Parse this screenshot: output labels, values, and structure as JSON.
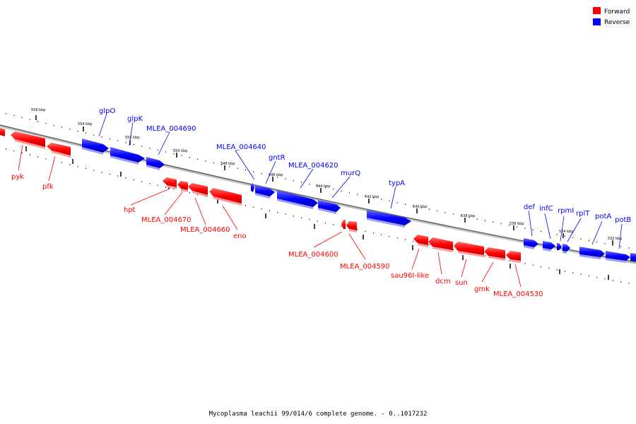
{
  "caption": "Mycoplasma leachii 99/014/6 complete genome. - 0..1017232",
  "legend": [
    {
      "label": "Forward",
      "color": "#ff0000"
    },
    {
      "label": "Reverse",
      "color": "#0000ff"
    }
  ],
  "colors": {
    "forward": "#ff0000",
    "reverse": "#0000ff",
    "backbone": "#808080"
  },
  "kbp_ticks": [
    "556 kbp",
    "554 kbp",
    "552 kbp",
    "550 kbp",
    "548 kbp",
    "546 kbp",
    "544 kbp",
    "542 kbp",
    "540 kbp",
    "538 kbp",
    "536 kbp",
    "534 kbp",
    "532 kbp"
  ],
  "forward_genes": [
    "pyk",
    "pfk",
    "hpt",
    "MLEA_004670",
    "MLEA_004660",
    "eno",
    "MLEA_004600",
    "MLEA_004590",
    "sau96I-like",
    "dcm",
    "sun",
    "gmk",
    "MLEA_004530"
  ],
  "reverse_genes": [
    "glpO",
    "glpK",
    "MLEA_004690",
    "MLEA_004640",
    "gntR",
    "MLEA_004620",
    "murQ",
    "typA",
    "def",
    "infC",
    "rpmI",
    "rplT",
    "potA",
    "potB"
  ]
}
